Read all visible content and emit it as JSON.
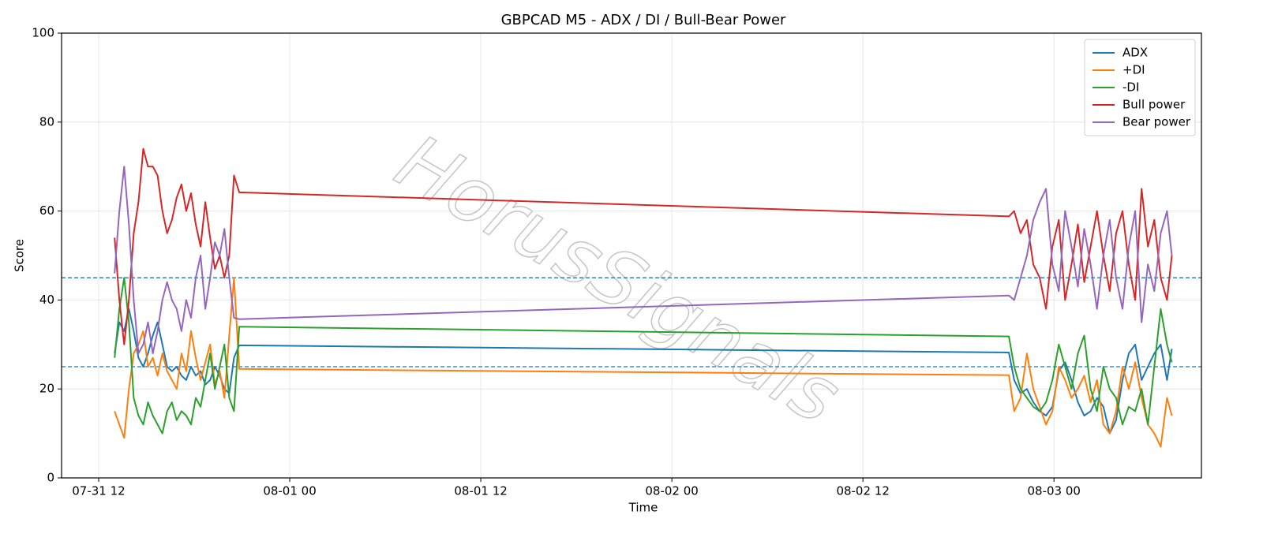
{
  "chart_data": {
    "type": "line",
    "title": "GBPCAD M5 - ADX / DI / Bull-Bear Power",
    "x_label": "Time",
    "y_label": "Score",
    "watermark": "HorusSignals",
    "x": [
      13.0,
      13.3,
      13.6,
      13.9,
      14.2,
      14.5,
      14.8,
      15.1,
      15.4,
      15.7,
      16.0,
      16.3,
      16.6,
      16.9,
      17.2,
      17.5,
      17.8,
      18.1,
      18.4,
      18.7,
      19.0,
      19.3,
      19.6,
      19.9,
      20.2,
      20.5,
      20.83,
      69.17,
      69.5,
      69.9,
      70.3,
      70.7,
      71.1,
      71.5,
      71.9,
      72.3,
      72.7,
      73.1,
      73.5,
      73.9,
      74.3,
      74.7,
      75.1,
      75.5,
      75.9,
      76.3,
      76.7,
      77.1,
      77.5,
      77.9,
      78.3,
      78.7,
      79.1,
      79.4
    ],
    "series": [
      {
        "name": "ADX",
        "color": "#1f77b4",
        "values": [
          28,
          35,
          33,
          38,
          33,
          27,
          25,
          28,
          32,
          35,
          30,
          25,
          24,
          25,
          23,
          22,
          25,
          23,
          24,
          21,
          22,
          25,
          23,
          20,
          19,
          27,
          29.8,
          28.2,
          22,
          19,
          20,
          17,
          15,
          14,
          16,
          24,
          26,
          22,
          17,
          14,
          15,
          18,
          16,
          10,
          13,
          22,
          28,
          30,
          22,
          25,
          28,
          30,
          22,
          29
        ]
      },
      {
        "name": "+DI",
        "color": "#ff7f0e",
        "values": [
          15,
          12,
          9,
          20,
          28,
          30,
          33,
          25,
          27,
          23,
          28,
          24,
          22,
          20,
          28,
          24,
          33,
          27,
          22,
          26,
          30,
          21,
          24,
          18,
          32,
          45,
          24.5,
          23.1,
          15,
          18,
          28,
          20,
          16,
          12,
          15,
          25,
          22,
          18,
          20,
          23,
          17,
          22,
          12,
          10,
          15,
          25,
          20,
          26,
          18,
          12,
          10,
          7,
          18,
          14
        ]
      },
      {
        "name": "-DI",
        "color": "#2ca02c",
        "values": [
          27,
          38,
          45,
          35,
          18,
          14,
          12,
          17,
          14,
          12,
          10,
          15,
          17,
          13,
          15,
          14,
          12,
          18,
          16,
          22,
          28,
          20,
          25,
          30,
          18,
          15,
          34,
          31.8,
          25,
          20,
          18,
          16,
          15,
          17,
          22,
          30,
          25,
          20,
          28,
          32,
          20,
          15,
          25,
          20,
          18,
          12,
          16,
          15,
          20,
          12,
          25,
          38,
          30,
          26
        ]
      },
      {
        "name": "Bull power",
        "color": "#d62728",
        "values": [
          54,
          40,
          30,
          40,
          55,
          62,
          74,
          70,
          70,
          68,
          60,
          55,
          58,
          63,
          66,
          60,
          64,
          57,
          52,
          62,
          54,
          47,
          50,
          45,
          50,
          68,
          64.2,
          58.8,
          60,
          55,
          58,
          48,
          45,
          38,
          52,
          58,
          40,
          48,
          57,
          44,
          52,
          60,
          50,
          42,
          55,
          60,
          48,
          40,
          65,
          52,
          58,
          45,
          40,
          50
        ]
      },
      {
        "name": "Bear power",
        "color": "#9467bd",
        "values": [
          46,
          60,
          70,
          57,
          40,
          28,
          30,
          35,
          28,
          33,
          40,
          44,
          40,
          38,
          33,
          40,
          36,
          45,
          50,
          38,
          45,
          53,
          50,
          56,
          45,
          36,
          35.7,
          41,
          40,
          45,
          50,
          58,
          62,
          65,
          48,
          42,
          60,
          52,
          43,
          56,
          48,
          38,
          50,
          58,
          45,
          38,
          52,
          60,
          35,
          48,
          42,
          55,
          60,
          50
        ]
      }
    ],
    "hlines": [
      45,
      25
    ],
    "hline_color": "#1f77b4",
    "xlim": [
      9.67,
      81.26
    ],
    "xticks": [
      {
        "value": 12,
        "label": "07-31 12"
      },
      {
        "value": 24,
        "label": "08-01 00"
      },
      {
        "value": 36,
        "label": "08-01 12"
      },
      {
        "value": 48,
        "label": "08-02 00"
      },
      {
        "value": 60,
        "label": "08-02 12"
      },
      {
        "value": 72,
        "label": "08-03 00"
      }
    ],
    "ylim": [
      0,
      100
    ],
    "yticks": [
      0,
      20,
      40,
      60,
      80,
      100
    ],
    "grid": true,
    "legend": "upper-right"
  }
}
